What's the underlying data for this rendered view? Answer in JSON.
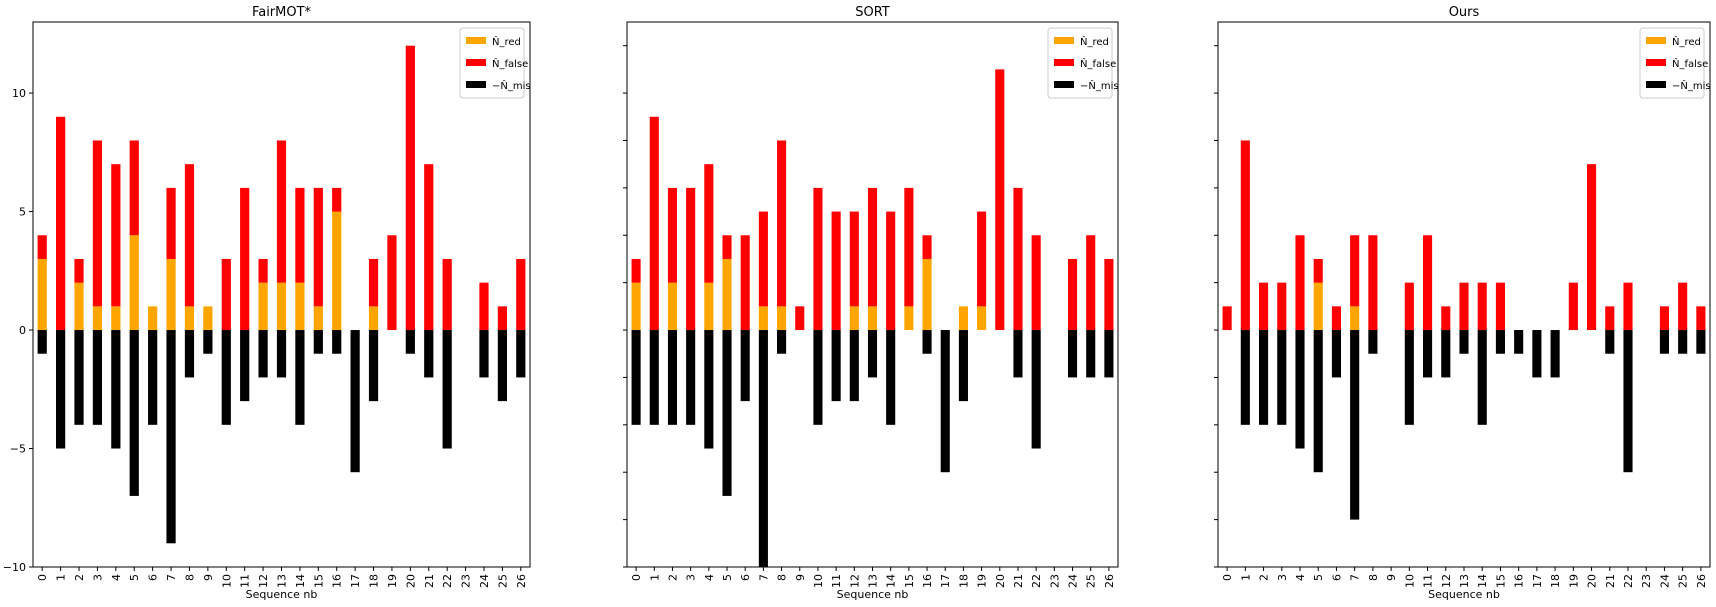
{
  "chart_data": [
    {
      "type": "bar",
      "title": "FairMOT*",
      "xlabel": "Sequence nb",
      "ylabel": "",
      "ylim": [
        -10,
        13
      ],
      "yticks": [
        -10,
        -5,
        0,
        5,
        10
      ],
      "show_ytick_labels": true,
      "categories": [
        "0",
        "1",
        "2",
        "3",
        "4",
        "5",
        "6",
        "7",
        "8",
        "9",
        "10",
        "11",
        "12",
        "13",
        "14",
        "15",
        "16",
        "17",
        "18",
        "19",
        "20",
        "21",
        "22",
        "23",
        "24",
        "25",
        "26"
      ],
      "series": [
        {
          "name": "N̂_red",
          "color": "#ffa500",
          "values": [
            3,
            0,
            2,
            1,
            1,
            4,
            1,
            3,
            1,
            1,
            0,
            0,
            2,
            2,
            2,
            1,
            5,
            0,
            1,
            0,
            0,
            0,
            0,
            0,
            0,
            0,
            0
          ]
        },
        {
          "name": "N̂_false",
          "color": "#ff0000",
          "values": [
            1,
            9,
            1,
            7,
            6,
            4,
            0,
            3,
            6,
            0,
            3,
            6,
            1,
            6,
            4,
            5,
            1,
            0,
            2,
            4,
            12,
            7,
            3,
            0,
            2,
            1,
            3
          ]
        },
        {
          "name": "−N̂_mis",
          "color": "#000000",
          "values": [
            -1,
            -5,
            -4,
            -4,
            -5,
            -7,
            -4,
            -9,
            -2,
            -1,
            -4,
            -3,
            -2,
            -2,
            -4,
            -1,
            -1,
            -6,
            -3,
            0,
            -1,
            -2,
            -5,
            0,
            -2,
            -3,
            -2
          ]
        }
      ],
      "legend": "top-right"
    },
    {
      "type": "bar",
      "title": "SORT",
      "xlabel": "Sequence nb",
      "ylabel": "",
      "ylim": [
        -10,
        13
      ],
      "yticks": [
        -10,
        -8,
        -6,
        -4,
        -2,
        0,
        2,
        4,
        6,
        8,
        10,
        12
      ],
      "show_ytick_labels": false,
      "categories": [
        "0",
        "1",
        "2",
        "3",
        "4",
        "5",
        "6",
        "7",
        "8",
        "9",
        "10",
        "11",
        "12",
        "13",
        "14",
        "15",
        "16",
        "17",
        "18",
        "19",
        "20",
        "21",
        "22",
        "23",
        "24",
        "25",
        "26"
      ],
      "series": [
        {
          "name": "N̂_red",
          "color": "#ffa500",
          "values": [
            2,
            0,
            2,
            0,
            2,
            3,
            0,
            1,
            1,
            0,
            0,
            0,
            1,
            1,
            0,
            1,
            3,
            0,
            1,
            1,
            0,
            0,
            0,
            0,
            0,
            0,
            0
          ]
        },
        {
          "name": "N̂_false",
          "color": "#ff0000",
          "values": [
            1,
            9,
            4,
            6,
            5,
            1,
            4,
            4,
            7,
            1,
            6,
            5,
            4,
            5,
            5,
            5,
            1,
            0,
            0,
            4,
            11,
            6,
            4,
            0,
            3,
            4,
            3
          ]
        },
        {
          "name": "−N̂_mis",
          "color": "#000000",
          "values": [
            -4,
            -4,
            -4,
            -4,
            -5,
            -7,
            -3,
            -10,
            -1,
            0,
            -4,
            -3,
            -3,
            -2,
            -4,
            0,
            -1,
            -6,
            -3,
            0,
            0,
            -2,
            -5,
            0,
            -2,
            -2,
            -2
          ]
        }
      ],
      "legend": "top-right"
    },
    {
      "type": "bar",
      "title": "Ours",
      "xlabel": "Sequence nb",
      "ylabel": "",
      "ylim": [
        -10,
        13
      ],
      "yticks": [
        -10,
        -8,
        -6,
        -4,
        -2,
        0,
        2,
        4,
        6,
        8,
        10,
        12
      ],
      "show_ytick_labels": false,
      "categories": [
        "0",
        "1",
        "2",
        "3",
        "4",
        "5",
        "6",
        "7",
        "8",
        "9",
        "10",
        "11",
        "12",
        "13",
        "14",
        "15",
        "16",
        "17",
        "18",
        "19",
        "20",
        "21",
        "22",
        "23",
        "24",
        "25",
        "26"
      ],
      "series": [
        {
          "name": "N̂_red",
          "color": "#ffa500",
          "values": [
            0,
            0,
            0,
            0,
            0,
            2,
            0,
            1,
            0,
            0,
            0,
            0,
            0,
            0,
            0,
            0,
            0,
            0,
            0,
            0,
            0,
            0,
            0,
            0,
            0,
            0,
            0
          ]
        },
        {
          "name": "N̂_false",
          "color": "#ff0000",
          "values": [
            1,
            8,
            2,
            2,
            4,
            1,
            1,
            3,
            4,
            0,
            2,
            4,
            1,
            2,
            2,
            2,
            0,
            0,
            0,
            2,
            7,
            1,
            2,
            0,
            1,
            2,
            1
          ]
        },
        {
          "name": "−N̂_mis",
          "color": "#000000",
          "values": [
            0,
            -4,
            -4,
            -4,
            -5,
            -6,
            -2,
            -8,
            -1,
            0,
            -4,
            -2,
            -2,
            -1,
            -4,
            -1,
            -1,
            -2,
            -2,
            0,
            0,
            -1,
            -6,
            0,
            -1,
            -1,
            -1
          ]
        }
      ],
      "legend": "top-right"
    }
  ]
}
